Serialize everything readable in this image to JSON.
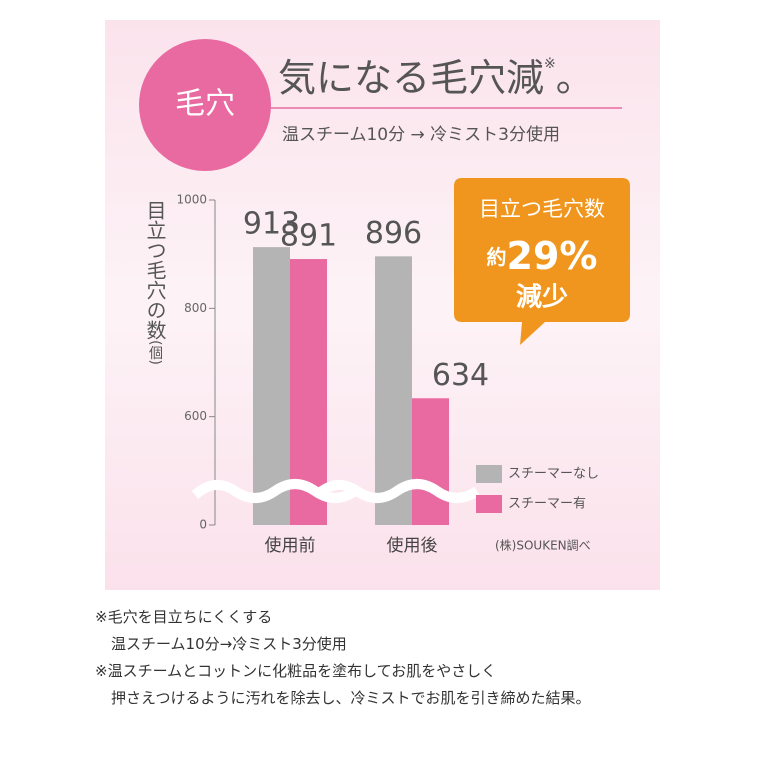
{
  "header": {
    "badge": "毛穴",
    "title": "気になる毛穴減",
    "title_mark": "※",
    "title_end": "。",
    "subtitle": "温スチーム10分 → 冷ミスト3分使用"
  },
  "chart_data": {
    "type": "bar",
    "y_label": "目立つ毛穴の数",
    "y_unit": "(個)",
    "categories": [
      "使用前",
      "使用後"
    ],
    "series": [
      {
        "name": "スチーマーなし",
        "color": "#b4b4b4",
        "values": [
          913,
          896
        ]
      },
      {
        "name": "スチーマー有",
        "color": "#e86aa1",
        "values": [
          891,
          634
        ]
      }
    ],
    "ylim": [
      0,
      1000
    ],
    "yticks": [
      0,
      600,
      800,
      1000
    ],
    "axis_break": true,
    "source": "(株)SOUKEN調べ",
    "callout": {
      "line1": "目立つ毛穴数",
      "prefix": "約",
      "value": "29%",
      "line3": "減少"
    }
  },
  "notes": [
    "※毛穴を目立ちにくくする",
    "温スチーム10分→冷ミスト3分使用",
    "※温スチームとコットンに化粧品を塗布してお肌をやさしく",
    "押さえつけるように汚れを除去し、冷ミストでお肌を引き締めた結果。"
  ]
}
